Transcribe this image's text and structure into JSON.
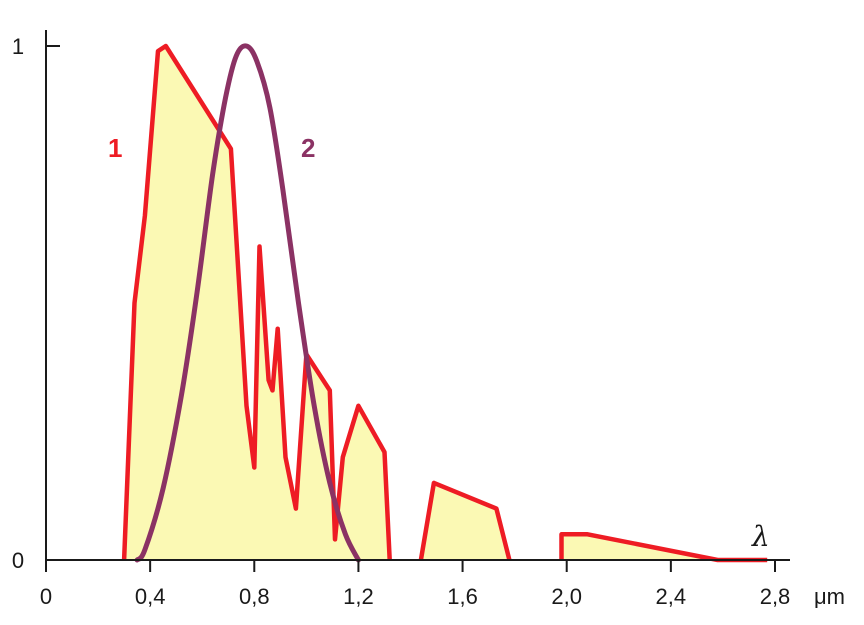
{
  "chart_data": {
    "type": "line",
    "xlim": [
      0,
      2.8
    ],
    "ylim": [
      0,
      1
    ],
    "x_ticks": [
      0,
      0.4,
      0.8,
      1.2,
      1.6,
      2.0,
      2.4,
      2.8
    ],
    "x_tick_labels": [
      "0",
      "0,4",
      "0,8",
      "1,2",
      "1,6",
      "2,0",
      "2,4",
      "2,8"
    ],
    "x_unit": "μm",
    "y_ticks": [
      0,
      1
    ],
    "y_tick_labels": [
      "0",
      "1"
    ],
    "axis_symbol": "λ",
    "grid": false,
    "series": [
      {
        "label": "1",
        "color": "#ee1c24",
        "fill": "#fbf9b4",
        "segments": [
          [
            [
              0.3,
              0
            ],
            [
              0.34,
              0.5
            ],
            [
              0.38,
              0.67
            ],
            [
              0.43,
              0.99
            ],
            [
              0.46,
              1.0
            ],
            [
              0.71,
              0.8
            ],
            [
              0.77,
              0.3
            ],
            [
              0.8,
              0.18
            ],
            [
              0.82,
              0.61
            ],
            [
              0.855,
              0.35
            ],
            [
              0.87,
              0.33
            ],
            [
              0.89,
              0.45
            ],
            [
              0.92,
              0.2
            ],
            [
              0.96,
              0.1
            ],
            [
              1.0,
              0.4
            ],
            [
              1.09,
              0.33
            ],
            [
              1.11,
              0.04
            ],
            [
              1.14,
              0.2
            ],
            [
              1.2,
              0.3
            ],
            [
              1.3,
              0.21
            ],
            [
              1.32,
              0
            ]
          ],
          [
            [
              1.44,
              0
            ],
            [
              1.49,
              0.15
            ],
            [
              1.73,
              0.1
            ],
            [
              1.78,
              0
            ]
          ],
          [
            [
              1.98,
              0
            ],
            [
              1.98,
              0.05
            ],
            [
              2.08,
              0.05
            ],
            [
              2.58,
              0
            ],
            [
              2.77,
              0
            ]
          ]
        ]
      },
      {
        "label": "2",
        "color": "#8b3264",
        "points": [
          [
            0.35,
            0
          ],
          [
            0.38,
            0.02
          ],
          [
            0.45,
            0.14
          ],
          [
            0.52,
            0.32
          ],
          [
            0.58,
            0.52
          ],
          [
            0.64,
            0.75
          ],
          [
            0.69,
            0.9
          ],
          [
            0.73,
            0.98
          ],
          [
            0.77,
            1.0
          ],
          [
            0.81,
            0.97
          ],
          [
            0.86,
            0.88
          ],
          [
            0.91,
            0.72
          ],
          [
            0.97,
            0.5
          ],
          [
            1.03,
            0.3
          ],
          [
            1.09,
            0.15
          ],
          [
            1.15,
            0.05
          ],
          [
            1.2,
            0
          ]
        ]
      }
    ]
  }
}
